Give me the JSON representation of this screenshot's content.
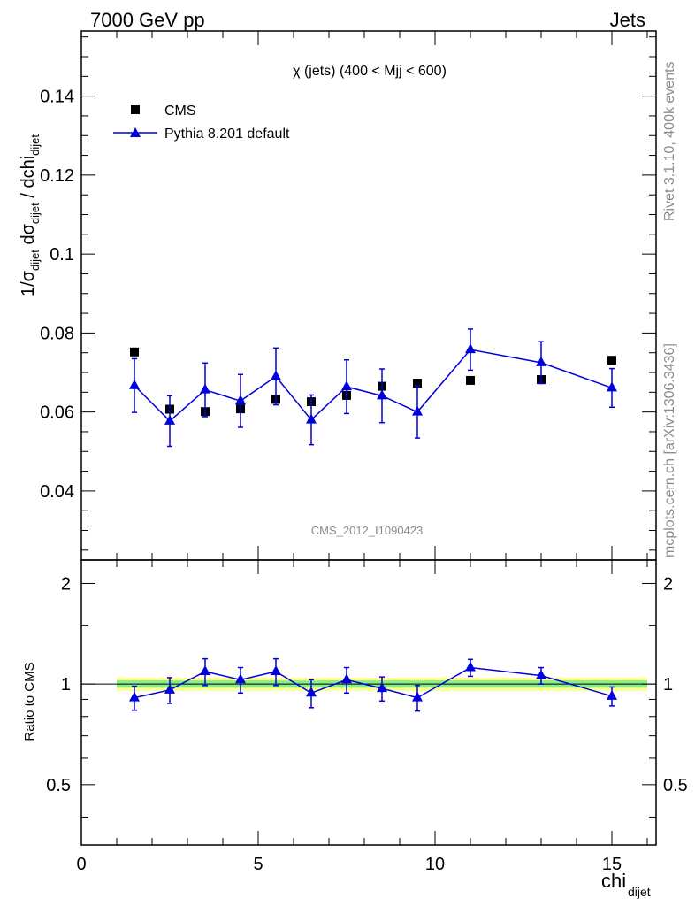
{
  "header": {
    "left": "7000 GeV pp",
    "right": "Jets"
  },
  "side_labels": {
    "rivet": "Rivet 3.1.10,  400k events",
    "mcplots": "mcplots.cern.ch [arXiv:1306.3436]"
  },
  "chart_data": [
    {
      "type": "scatter",
      "title": "χ (jets) (400 < Mjj <  600)",
      "watermark": "CMS_2012_I1090423",
      "xlabel": "chi_dijet",
      "ylabel": "1/σ_dijet dσ_dijet / dchi_dijet",
      "xlim": [
        0,
        16.25
      ],
      "ylim": [
        0.0225,
        0.1565
      ],
      "xticks": [
        0,
        5,
        10,
        15
      ],
      "yticks": [
        0.04,
        0.06,
        0.08,
        0.1,
        0.12,
        0.14
      ],
      "ytick_labels": [
        "0.04",
        "0.06",
        "0.08",
        "0.1",
        "0.12",
        "0.14"
      ],
      "legend_position": "top-left",
      "series": [
        {
          "name": "CMS",
          "marker": "square",
          "color": "#000000",
          "x": [
            1.5,
            2.5,
            3.5,
            4.5,
            5.5,
            6.5,
            7.5,
            8.5,
            9.5,
            11.0,
            13.0,
            15.0
          ],
          "y": [
            0.0752,
            0.0607,
            0.0601,
            0.0608,
            0.0632,
            0.0626,
            0.0642,
            0.0665,
            0.0673,
            0.068,
            0.0682,
            0.0731
          ],
          "err": [
            0.0005,
            0.0005,
            0.0005,
            0.0005,
            0.0005,
            0.0005,
            0.0005,
            0.0005,
            0.0005,
            0.0005,
            0.0005,
            0.0005
          ]
        },
        {
          "name": "Pythia 8.201 default",
          "marker": "triangle",
          "color": "#0000dd",
          "x": [
            1.5,
            2.5,
            3.5,
            4.5,
            5.5,
            6.5,
            7.5,
            8.5,
            9.5,
            11.0,
            13.0,
            15.0
          ],
          "y": [
            0.0667,
            0.0577,
            0.0656,
            0.0628,
            0.069,
            0.058,
            0.0664,
            0.0641,
            0.06,
            0.0758,
            0.0725,
            0.0661
          ],
          "err": [
            0.0068,
            0.0064,
            0.0068,
            0.0067,
            0.0072,
            0.0063,
            0.0068,
            0.0068,
            0.0066,
            0.0052,
            0.0053,
            0.0049
          ]
        }
      ]
    },
    {
      "type": "scatter",
      "xlabel": "chi_dijet",
      "ylabel": "Ratio to CMS",
      "xlim": [
        0,
        16.25
      ],
      "ylim": [
        0.33,
        2.35
      ],
      "yscale": "log",
      "yticks": [
        0.5,
        1,
        2
      ],
      "ytick_labels": [
        "0.5",
        "1",
        "2"
      ],
      "xticks": [
        0,
        5,
        10,
        15
      ],
      "xtick_labels": [
        "0",
        "5",
        "10",
        "15"
      ],
      "bands": {
        "x_range": [
          1.0,
          16.0
        ],
        "yellow": [
          0.955,
          1.045
        ],
        "green": [
          0.975,
          1.025
        ],
        "yellow_color": "#ffff88",
        "green_color": "#88ee88"
      },
      "series": [
        {
          "name": "Pythia 8.201 default",
          "color": "#0000dd",
          "x": [
            1.5,
            2.5,
            3.5,
            4.5,
            5.5,
            6.5,
            7.5,
            8.5,
            9.5,
            11.0,
            13.0,
            15.0
          ],
          "y": [
            0.91,
            0.96,
            1.09,
            1.03,
            1.09,
            0.94,
            1.03,
            0.97,
            0.91,
            1.12,
            1.06,
            0.92
          ],
          "err": [
            0.075,
            0.085,
            0.1,
            0.09,
            0.1,
            0.09,
            0.09,
            0.08,
            0.08,
            0.065,
            0.06,
            0.06
          ]
        }
      ]
    }
  ]
}
